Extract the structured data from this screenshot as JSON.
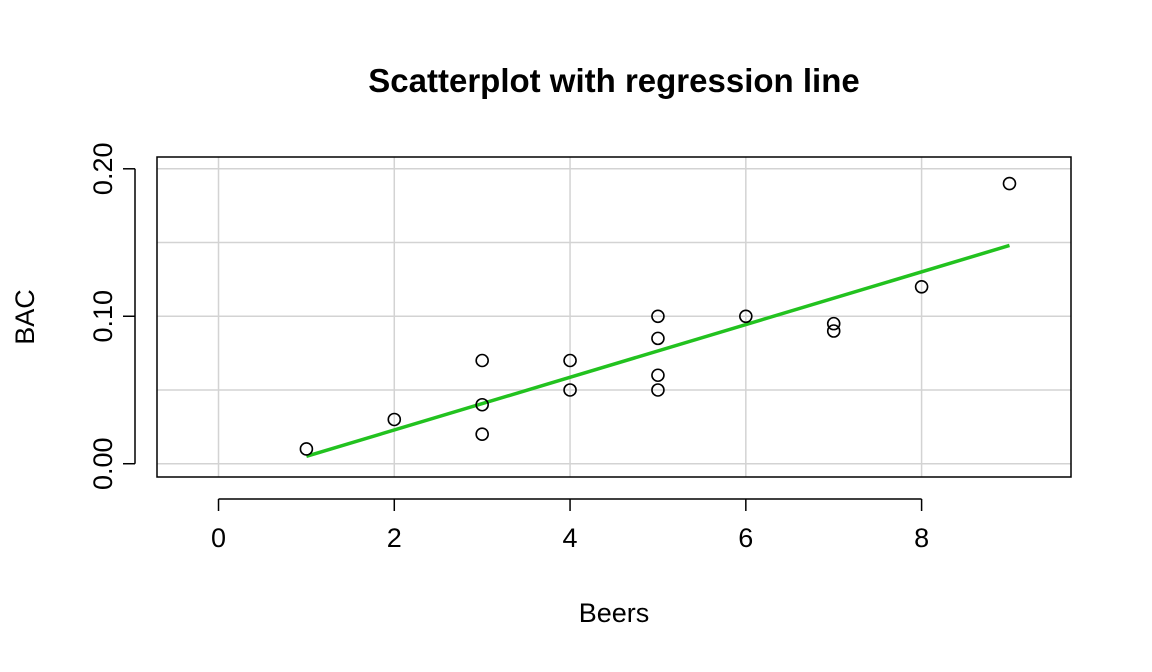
{
  "chart_data": {
    "type": "scatter",
    "title": "Scatterplot with regression line",
    "xlabel": "Beers",
    "ylabel": "BAC",
    "xlim": [
      -0.7,
      9.7
    ],
    "ylim": [
      -0.009,
      0.208
    ],
    "x_ticks": [
      0,
      2,
      4,
      6,
      8
    ],
    "x_tick_labels": [
      "0",
      "2",
      "4",
      "6",
      "8"
    ],
    "y_ticks": [
      0.0,
      0.1,
      0.2
    ],
    "y_tick_labels": [
      "0.00",
      "0.10",
      "0.20"
    ],
    "grid": true,
    "grid_x": [
      0,
      2,
      4,
      6,
      8
    ],
    "grid_y": [
      0.0,
      0.05,
      0.1,
      0.15,
      0.2
    ],
    "colors": {
      "points": "#000000",
      "regression_line": "#22c21f",
      "grid": "#d3d3d3",
      "box": "#000000"
    },
    "points": [
      {
        "x": 1,
        "y": 0.01
      },
      {
        "x": 2,
        "y": 0.03
      },
      {
        "x": 3,
        "y": 0.07
      },
      {
        "x": 3,
        "y": 0.04
      },
      {
        "x": 3,
        "y": 0.02
      },
      {
        "x": 4,
        "y": 0.07
      },
      {
        "x": 4,
        "y": 0.05
      },
      {
        "x": 5,
        "y": 0.1
      },
      {
        "x": 5,
        "y": 0.085
      },
      {
        "x": 5,
        "y": 0.06
      },
      {
        "x": 5,
        "y": 0.05
      },
      {
        "x": 6,
        "y": 0.1
      },
      {
        "x": 7,
        "y": 0.095
      },
      {
        "x": 7,
        "y": 0.09
      },
      {
        "x": 8,
        "y": 0.12
      },
      {
        "x": 9,
        "y": 0.19
      }
    ],
    "regression_line": {
      "x": [
        1,
        9
      ],
      "y": [
        0.005,
        0.148
      ]
    }
  }
}
